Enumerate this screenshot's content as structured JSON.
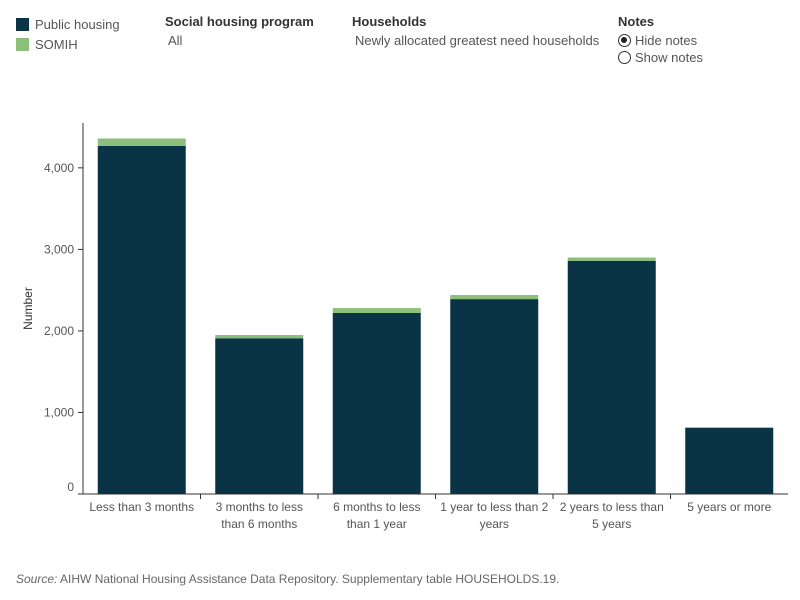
{
  "legend": [
    {
      "label": "Public housing",
      "color": "#0a3346"
    },
    {
      "label": "SOMIH",
      "color": "#8cc07a"
    }
  ],
  "filters": {
    "program": {
      "title": "Social housing program",
      "value": "All"
    },
    "households": {
      "title": "Households",
      "value": "Newly allocated greatest need households"
    },
    "notes": {
      "title": "Notes",
      "options": [
        "Hide notes",
        "Show notes"
      ],
      "selected": "Hide notes"
    }
  },
  "source": {
    "prefix": "Source:",
    "text": " AIHW National Housing Assistance Data Repository. Supplementary table HOUSEHOLDS.19."
  },
  "chart_data": {
    "type": "bar",
    "stacked": true,
    "categories": [
      [
        "Less than 3 months"
      ],
      [
        "3 months to less",
        "than 6 months"
      ],
      [
        "6 months to less",
        "than 1 year"
      ],
      [
        "1 year to less than 2",
        "years"
      ],
      [
        "2 years to less than",
        "5 years"
      ],
      [
        "5 years or more"
      ]
    ],
    "series": [
      {
        "name": "Public housing",
        "color": "#0a3346",
        "values": [
          4270,
          1910,
          2220,
          2390,
          2860,
          810
        ]
      },
      {
        "name": "SOMIH",
        "color": "#8cc07a",
        "values": [
          90,
          40,
          60,
          50,
          40,
          10
        ]
      }
    ],
    "ylabel": "Number",
    "yticks": [
      0,
      1000,
      2000,
      3000,
      4000
    ],
    "ytick_labels": [
      "0",
      "1,000",
      "2,000",
      "3,000",
      "4,000"
    ],
    "ylim": [
      0,
      4550
    ],
    "grid": false
  }
}
